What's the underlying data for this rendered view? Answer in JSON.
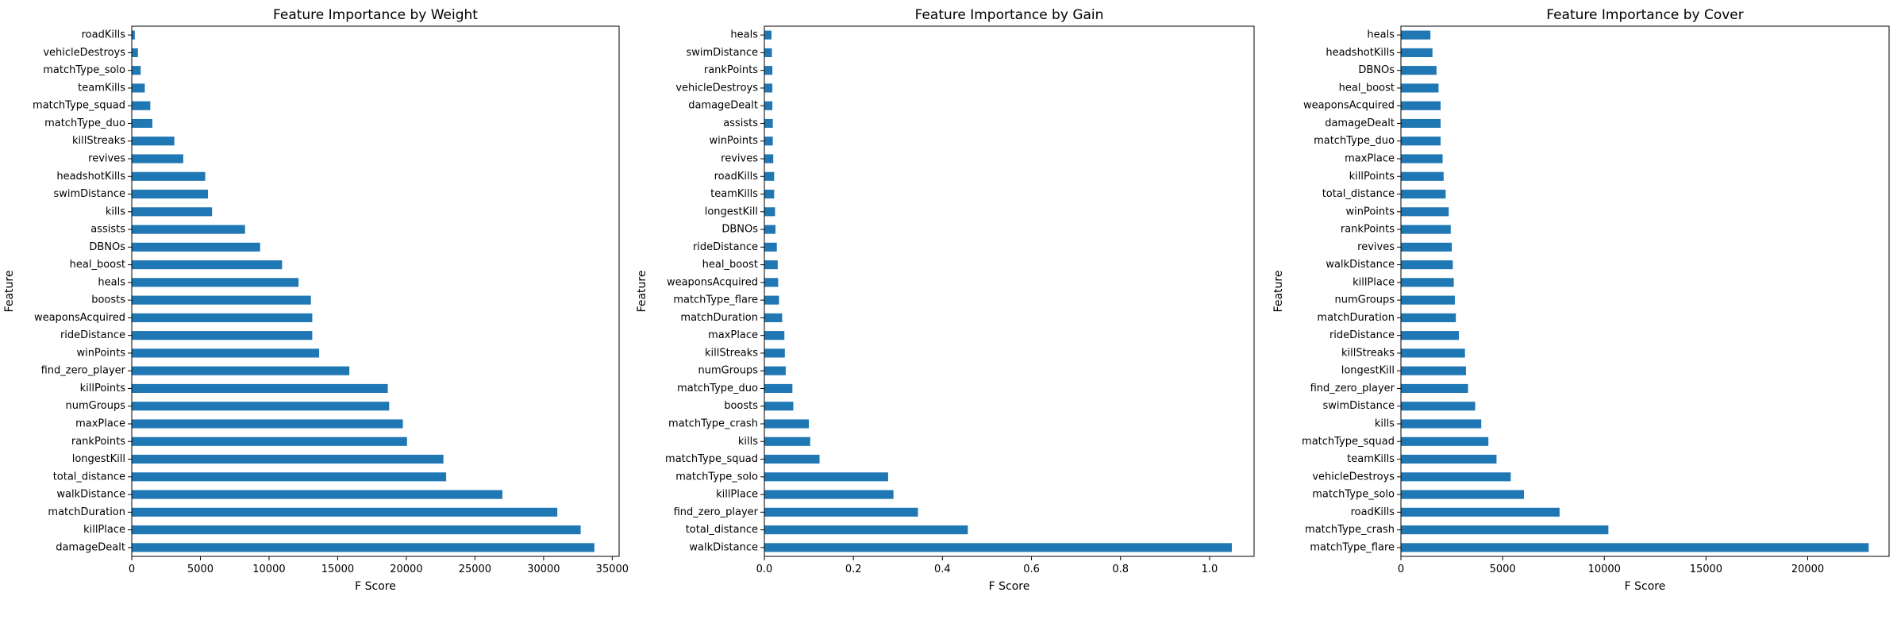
{
  "colors": {
    "bar": "#1f77b4",
    "axis": "#000000",
    "background": "#ffffff"
  },
  "chart_data": [
    {
      "type": "bar",
      "orientation": "horizontal",
      "title": "Feature Importance by Weight",
      "xlabel": "F Score",
      "ylabel": "Feature",
      "xlim": [
        0,
        35500
      ],
      "xticks": [
        0,
        5000,
        10000,
        15000,
        20000,
        25000,
        30000,
        35000
      ],
      "xtick_labels": [
        "0",
        "5000",
        "10000",
        "15000",
        "20000",
        "25000",
        "30000",
        "35000"
      ],
      "grid": false,
      "categories": [
        "roadKills",
        "vehicleDestroys",
        "matchType_solo",
        "teamKills",
        "matchType_squad",
        "matchType_duo",
        "killStreaks",
        "revives",
        "headshotKills",
        "swimDistance",
        "kills",
        "assists",
        "DBNOs",
        "heal_boost",
        "heals",
        "boosts",
        "weaponsAcquired",
        "rideDistance",
        "winPoints",
        "find_zero_player",
        "killPoints",
        "numGroups",
        "maxPlace",
        "rankPoints",
        "longestKill",
        "total_distance",
        "walkDistance",
        "matchDuration",
        "killPlace",
        "damageDealt"
      ],
      "values": [
        220,
        450,
        650,
        950,
        1350,
        1500,
        3100,
        3750,
        5350,
        5550,
        5850,
        8250,
        9350,
        10950,
        12150,
        13050,
        13150,
        13150,
        13650,
        15850,
        18650,
        18750,
        19750,
        20050,
        22700,
        22900,
        27000,
        31000,
        32700,
        33700
      ]
    },
    {
      "type": "bar",
      "orientation": "horizontal",
      "title": "Feature Importance by Gain",
      "xlabel": "F Score",
      "ylabel": "Feature",
      "xlim": [
        0,
        1.1
      ],
      "xticks": [
        0,
        0.2,
        0.4,
        0.6,
        0.8,
        1.0
      ],
      "xtick_labels": [
        "0.0",
        "0.2",
        "0.4",
        "0.6",
        "0.8",
        "1.0"
      ],
      "grid": false,
      "categories": [
        "heals",
        "swimDistance",
        "rankPoints",
        "vehicleDestroys",
        "damageDealt",
        "assists",
        "winPoints",
        "revives",
        "roadKills",
        "teamKills",
        "longestKill",
        "DBNOs",
        "rideDistance",
        "heal_boost",
        "weaponsAcquired",
        "matchType_flare",
        "matchDuration",
        "maxPlace",
        "killStreaks",
        "numGroups",
        "matchType_duo",
        "boosts",
        "matchType_crash",
        "kills",
        "matchType_squad",
        "matchType_solo",
        "killPlace",
        "find_zero_player",
        "total_distance",
        "walkDistance"
      ],
      "values": [
        0.016,
        0.017,
        0.018,
        0.018,
        0.018,
        0.019,
        0.019,
        0.02,
        0.022,
        0.022,
        0.024,
        0.025,
        0.028,
        0.03,
        0.031,
        0.033,
        0.04,
        0.045,
        0.046,
        0.048,
        0.063,
        0.065,
        0.1,
        0.103,
        0.124,
        0.278,
        0.29,
        0.345,
        0.457,
        1.05
      ]
    },
    {
      "type": "bar",
      "orientation": "horizontal",
      "title": "Feature Importance by Cover",
      "xlabel": "F Score",
      "ylabel": "Feature",
      "xlim": [
        0,
        24000
      ],
      "xticks": [
        0,
        5000,
        10000,
        15000,
        20000
      ],
      "xtick_labels": [
        "0",
        "5000",
        "10000",
        "15000",
        "20000"
      ],
      "grid": false,
      "categories": [
        "heals",
        "headshotKills",
        "DBNOs",
        "heal_boost",
        "weaponsAcquired",
        "damageDealt",
        "matchType_duo",
        "maxPlace",
        "killPoints",
        "total_distance",
        "winPoints",
        "rankPoints",
        "revives",
        "walkDistance",
        "killPlace",
        "numGroups",
        "matchDuration",
        "rideDistance",
        "killStreaks",
        "longestKill",
        "find_zero_player",
        "swimDistance",
        "kills",
        "matchType_squad",
        "teamKills",
        "vehicleDestroys",
        "matchType_solo",
        "roadKills",
        "matchType_crash",
        "matchType_flare"
      ],
      "values": [
        1450,
        1550,
        1750,
        1850,
        1950,
        1950,
        1950,
        2050,
        2100,
        2200,
        2350,
        2450,
        2500,
        2550,
        2600,
        2650,
        2700,
        2850,
        3150,
        3200,
        3300,
        3650,
        3950,
        4300,
        4700,
        5400,
        6050,
        7800,
        10200,
        23000
      ]
    }
  ]
}
